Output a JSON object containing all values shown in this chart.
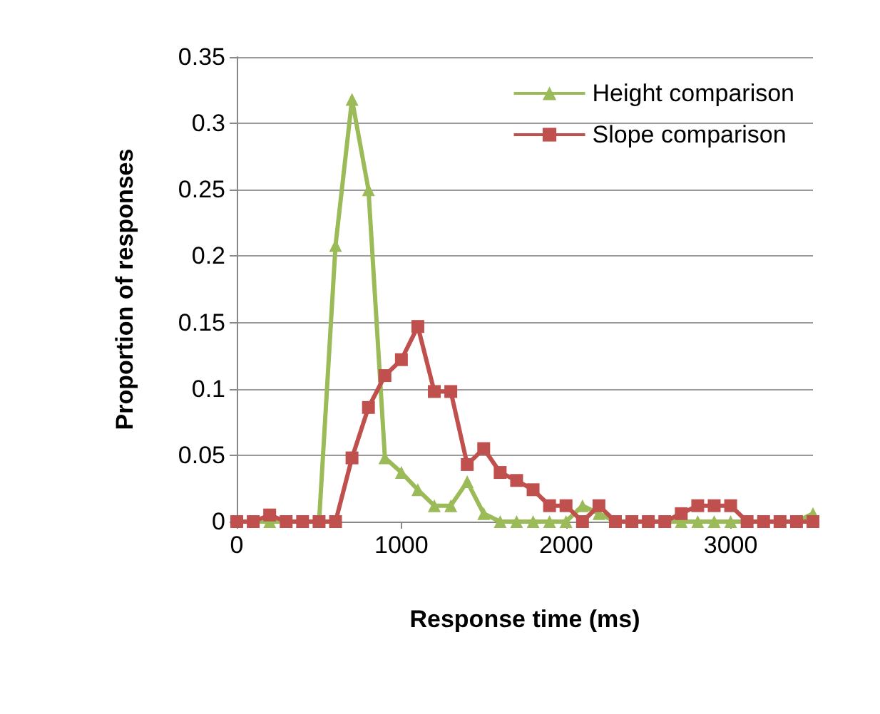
{
  "chart_data": {
    "type": "line",
    "xlabel": "Response time (ms)",
    "ylabel": "Proportion of responses",
    "x": [
      0,
      100,
      200,
      300,
      400,
      500,
      600,
      700,
      800,
      900,
      1000,
      1100,
      1200,
      1300,
      1400,
      1500,
      1600,
      1700,
      1800,
      1900,
      2000,
      2100,
      2200,
      2300,
      2400,
      2500,
      2600,
      2700,
      2800,
      2900,
      3000,
      3100,
      3200,
      3300,
      3400,
      3500
    ],
    "series": [
      {
        "name": "Height comparison",
        "color": "#9bbb59",
        "marker": "triangle",
        "values": [
          0,
          0,
          0,
          0,
          0,
          0,
          0.208,
          0.318,
          0.25,
          0.048,
          0.037,
          0.024,
          0.012,
          0.012,
          0.03,
          0.006,
          0,
          0,
          0,
          0,
          0,
          0.012,
          0.006,
          0,
          0,
          0,
          0,
          0,
          0,
          0,
          0,
          0,
          0,
          0,
          0,
          0.006
        ]
      },
      {
        "name": "Slope comparison",
        "color": "#c0504d",
        "marker": "square",
        "values": [
          0,
          0,
          0.005,
          0,
          0,
          0,
          0,
          0.048,
          0.086,
          0.11,
          0.122,
          0.147,
          0.098,
          0.098,
          0.043,
          0.055,
          0.037,
          0.031,
          0.024,
          0.012,
          0.012,
          0,
          0.012,
          0,
          0,
          0,
          0,
          0.006,
          0.012,
          0.012,
          0.012,
          0,
          0,
          0,
          0,
          0
        ]
      }
    ],
    "xlim": [
      0,
      3500
    ],
    "xticks": [
      0,
      1000,
      2000,
      3000
    ],
    "ylim": [
      0,
      0.35
    ],
    "yticks": [
      0,
      0.05,
      0.1,
      0.15,
      0.2,
      0.25,
      0.3,
      0.35
    ],
    "grid": "y",
    "legend": "top right"
  }
}
